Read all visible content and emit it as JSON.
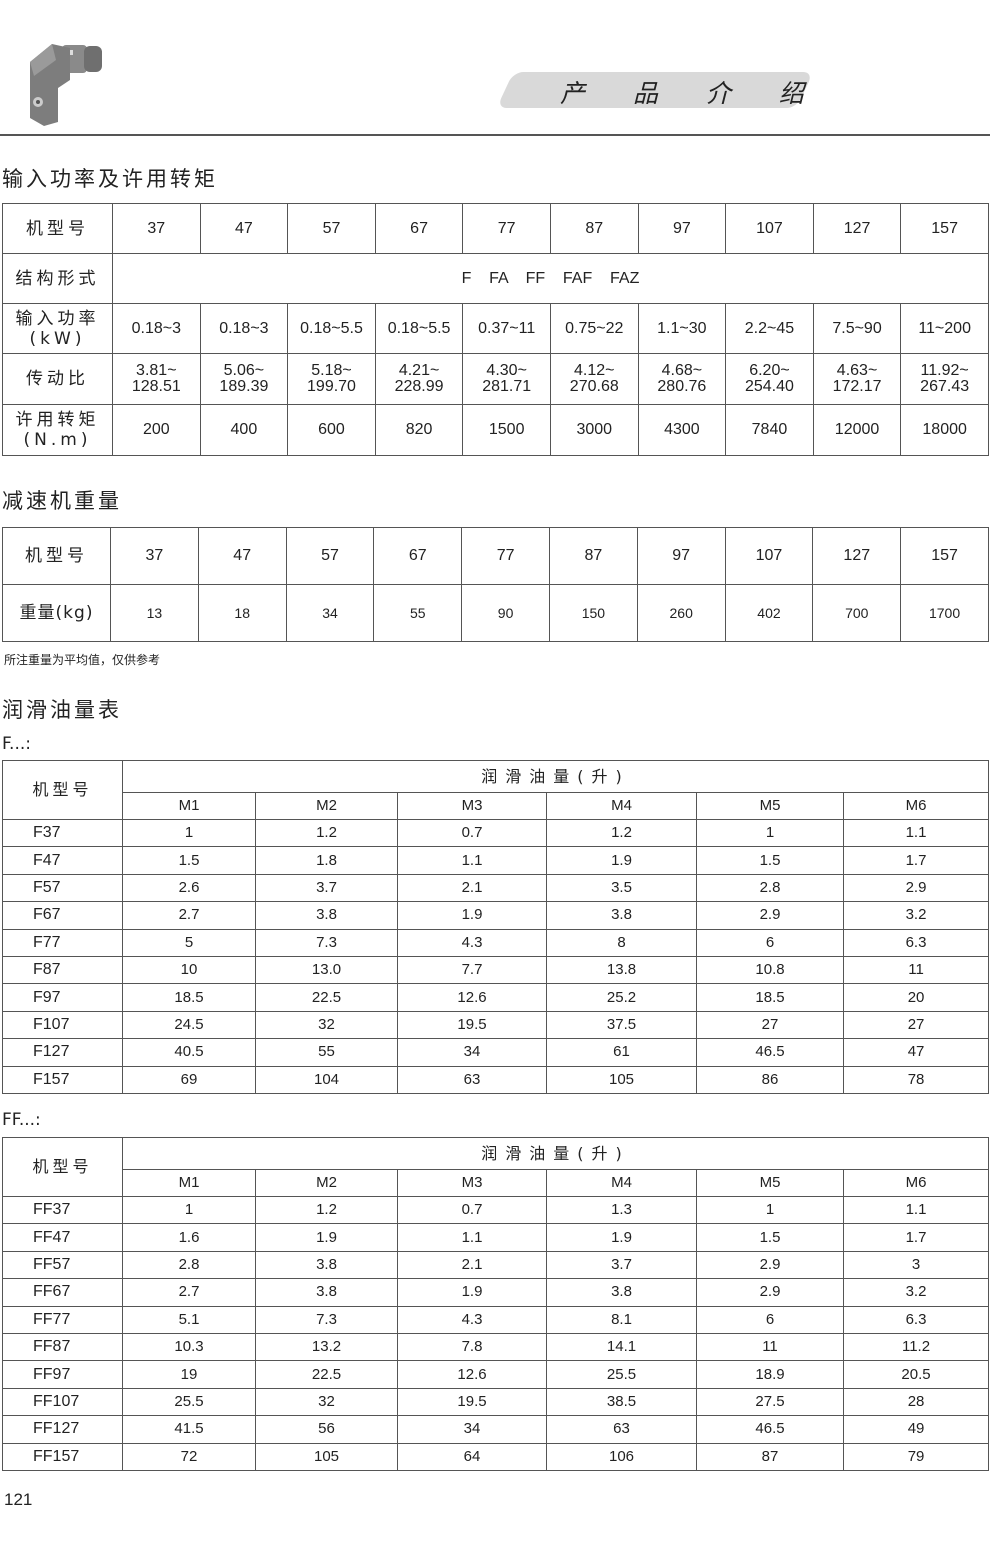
{
  "header": {
    "banner_title": "产 品 介 绍",
    "product_image": "gear-reducer-image"
  },
  "section1": {
    "title": "输入功率及许用转矩",
    "row_labels": {
      "model": "机型号",
      "structure": "结构形式",
      "power": "输入功率\n(kW)",
      "ratio": "传动比",
      "torque": "许用转矩\n(N.m)"
    },
    "models": [
      "37",
      "47",
      "57",
      "67",
      "77",
      "87",
      "97",
      "107",
      "127",
      "157"
    ],
    "structure": "F    FA    FF    FAF    FAZ",
    "power": [
      "0.18~3",
      "0.18~3",
      "0.18~5.5",
      "0.18~5.5",
      "0.37~11",
      "0.75~22",
      "1.1~30",
      "2.2~45",
      "7.5~90",
      "11~200"
    ],
    "ratio": [
      "3.81~\n128.51",
      "5.06~\n189.39",
      "5.18~\n199.70",
      "4.21~\n228.99",
      "4.30~\n281.71",
      "4.12~\n270.68",
      "4.68~\n280.76",
      "6.20~\n254.40",
      "4.63~\n172.17",
      "11.92~\n267.43"
    ],
    "torque": [
      "200",
      "400",
      "600",
      "820",
      "1500",
      "3000",
      "4300",
      "7840",
      "12000",
      "18000"
    ]
  },
  "section2": {
    "title": "减速机重量",
    "row_labels": {
      "model": "机型号",
      "weight": "重量(kg)"
    },
    "models": [
      "37",
      "47",
      "57",
      "67",
      "77",
      "87",
      "97",
      "107",
      "127",
      "157"
    ],
    "weights": [
      "13",
      "18",
      "34",
      "55",
      "90",
      "150",
      "260",
      "402",
      "700",
      "1700"
    ],
    "note": "所注重量为平均值，仅供参考"
  },
  "section3": {
    "title": "润滑油量表",
    "tables": [
      {
        "label": "F...:",
        "model_header": "机型号",
        "group_header": "润滑油量(升)",
        "columns": [
          "M1",
          "M2",
          "M3",
          "M4",
          "M5",
          "M6"
        ],
        "rows": [
          [
            "F37",
            "1",
            "1.2",
            "0.7",
            "1.2",
            "1",
            "1.1"
          ],
          [
            "F47",
            "1.5",
            "1.8",
            "1.1",
            "1.9",
            "1.5",
            "1.7"
          ],
          [
            "F57",
            "2.6",
            "3.7",
            "2.1",
            "3.5",
            "2.8",
            "2.9"
          ],
          [
            "F67",
            "2.7",
            "3.8",
            "1.9",
            "3.8",
            "2.9",
            "3.2"
          ],
          [
            "F77",
            "5",
            "7.3",
            "4.3",
            "8",
            "6",
            "6.3"
          ],
          [
            "F87",
            "10",
            "13.0",
            "7.7",
            "13.8",
            "10.8",
            "11"
          ],
          [
            "F97",
            "18.5",
            "22.5",
            "12.6",
            "25.2",
            "18.5",
            "20"
          ],
          [
            "F107",
            "24.5",
            "32",
            "19.5",
            "37.5",
            "27",
            "27"
          ],
          [
            "F127",
            "40.5",
            "55",
            "34",
            "61",
            "46.5",
            "47"
          ],
          [
            "F157",
            "69",
            "104",
            "63",
            "105",
            "86",
            "78"
          ]
        ]
      },
      {
        "label": "FF...:",
        "model_header": "机型号",
        "group_header": "润滑油量(升)",
        "columns": [
          "M1",
          "M2",
          "M3",
          "M4",
          "M5",
          "M6"
        ],
        "rows": [
          [
            "FF37",
            "1",
            "1.2",
            "0.7",
            "1.3",
            "1",
            "1.1"
          ],
          [
            "FF47",
            "1.6",
            "1.9",
            "1.1",
            "1.9",
            "1.5",
            "1.7"
          ],
          [
            "FF57",
            "2.8",
            "3.8",
            "2.1",
            "3.7",
            "2.9",
            "3"
          ],
          [
            "FF67",
            "2.7",
            "3.8",
            "1.9",
            "3.8",
            "2.9",
            "3.2"
          ],
          [
            "FF77",
            "5.1",
            "7.3",
            "4.3",
            "8.1",
            "6",
            "6.3"
          ],
          [
            "FF87",
            "10.3",
            "13.2",
            "7.8",
            "14.1",
            "11",
            "11.2"
          ],
          [
            "FF97",
            "19",
            "22.5",
            "12.6",
            "25.5",
            "18.9",
            "20.5"
          ],
          [
            "FF107",
            "25.5",
            "32",
            "19.5",
            "38.5",
            "27.5",
            "28"
          ],
          [
            "FF127",
            "41.5",
            "56",
            "34",
            "63",
            "46.5",
            "49"
          ],
          [
            "FF157",
            "72",
            "105",
            "64",
            "106",
            "87",
            "79"
          ]
        ]
      }
    ]
  },
  "footer": {
    "page_number": "121"
  }
}
